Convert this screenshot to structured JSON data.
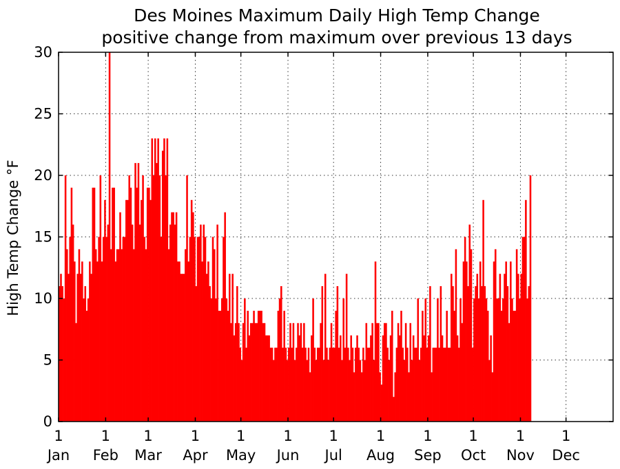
{
  "chart_data": {
    "type": "bar",
    "title": "Des Moines Maximum Daily High Temp Change",
    "subtitle": "positive change from maximum over previous 13 days",
    "xlabel": "",
    "ylabel": "High Temp Change °F",
    "ylim": [
      0,
      30
    ],
    "xlim": [
      1,
      366
    ],
    "x_unit": "day of year",
    "grid": true,
    "bar_color": "#ff0000",
    "yticks": [
      0,
      5,
      10,
      15,
      20,
      25,
      30
    ],
    "xticks": [
      {
        "day": 1,
        "day_label": "1",
        "month": "Jan"
      },
      {
        "day": 32,
        "day_label": "1",
        "month": "Feb"
      },
      {
        "day": 60,
        "day_label": "1",
        "month": "Mar"
      },
      {
        "day": 91,
        "day_label": "1",
        "month": "Apr"
      },
      {
        "day": 121,
        "day_label": "1",
        "month": "May"
      },
      {
        "day": 152,
        "day_label": "1",
        "month": "Jun"
      },
      {
        "day": 182,
        "day_label": "1",
        "month": "Jul"
      },
      {
        "day": 213,
        "day_label": "1",
        "month": "Aug"
      },
      {
        "day": 244,
        "day_label": "1",
        "month": "Sep"
      },
      {
        "day": 274,
        "day_label": "1",
        "month": "Oct"
      },
      {
        "day": 305,
        "day_label": "1",
        "month": "Nov"
      },
      {
        "day": 335,
        "day_label": "1",
        "month": "Dec"
      }
    ],
    "values": [
      11,
      12,
      11,
      10,
      20,
      14,
      12,
      15,
      19,
      16,
      13,
      8,
      12,
      14,
      12,
      13,
      10,
      11,
      9,
      10,
      13,
      12,
      19,
      19,
      14,
      13,
      15,
      20,
      13,
      15,
      18,
      15,
      16,
      30,
      14,
      19,
      19,
      13,
      14,
      14,
      17,
      14,
      15,
      15,
      18,
      18,
      20,
      19,
      16,
      14,
      21,
      19,
      21,
      16,
      18,
      20,
      15,
      14,
      19,
      19,
      18,
      23,
      20,
      23,
      21,
      23,
      20,
      15,
      22,
      23,
      20,
      23,
      14,
      16,
      17,
      17,
      16,
      17,
      13,
      13,
      12,
      12,
      12,
      14,
      20,
      13,
      15,
      18,
      17,
      15,
      11,
      15,
      15,
      16,
      13,
      16,
      15,
      12,
      13,
      11,
      10,
      15,
      14,
      10,
      16,
      9,
      9,
      10,
      15,
      17,
      10,
      9,
      12,
      8,
      12,
      7,
      8,
      11,
      8,
      6,
      5,
      8,
      10,
      6,
      9,
      7,
      8,
      8,
      9,
      8,
      8,
      9,
      9,
      9,
      8,
      8,
      7,
      7,
      7,
      6,
      6,
      5,
      6,
      6,
      9,
      10,
      11,
      6,
      9,
      6,
      5,
      6,
      8,
      6,
      8,
      5,
      6,
      8,
      7,
      8,
      6,
      8,
      6,
      5,
      6,
      4,
      7,
      10,
      6,
      5,
      6,
      6,
      8,
      11,
      5,
      12,
      6,
      5,
      6,
      8,
      6,
      6,
      9,
      11,
      6,
      7,
      5,
      10,
      6,
      12,
      6,
      5,
      7,
      6,
      4,
      6,
      7,
      6,
      5,
      4,
      6,
      5,
      8,
      6,
      6,
      7,
      8,
      5,
      13,
      8,
      8,
      4,
      3,
      7,
      8,
      8,
      6,
      5,
      7,
      9,
      2,
      4,
      6,
      8,
      7,
      9,
      6,
      5,
      8,
      6,
      4,
      8,
      5,
      7,
      6,
      6,
      10,
      5,
      6,
      9,
      7,
      10,
      6,
      7,
      11,
      4,
      6,
      6,
      6,
      10,
      6,
      11,
      7,
      6,
      6,
      9,
      6,
      6,
      12,
      11,
      9,
      14,
      7,
      6,
      10,
      8,
      13,
      15,
      13,
      11,
      16,
      14,
      6,
      10,
      11,
      12,
      10,
      13,
      11,
      18,
      11,
      10,
      9,
      5,
      7,
      4,
      13,
      14,
      10,
      10,
      12,
      9,
      10,
      12,
      13,
      11,
      8,
      13,
      10,
      9,
      9,
      14,
      12,
      10,
      12,
      15,
      15,
      18,
      10,
      11,
      20
    ]
  }
}
